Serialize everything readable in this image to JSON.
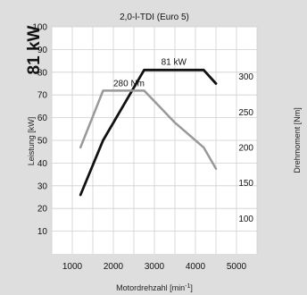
{
  "chart_data": {
    "type": "line",
    "title": "2,0-l-TDI (Euro 5)",
    "headline": "81 kW",
    "xlabel": "Motordrehzahl [min-1]",
    "xlabel_unit_base": "Motordrehzahl [min",
    "xlabel_unit_exp": "-1",
    "xlabel_unit_close": "]",
    "ylabel_left": "Leistung [kW]",
    "ylabel_right": "Drehmoment [Nm]",
    "xlim": [
      500,
      5500
    ],
    "x_ticks": [
      1000,
      2000,
      3000,
      4000,
      5000
    ],
    "ylim_left": [
      0,
      100
    ],
    "y_ticks_left": [
      10,
      20,
      30,
      40,
      50,
      60,
      70,
      80,
      90,
      100
    ],
    "ylim_right": [
      50,
      370
    ],
    "y_ticks_right": [
      100,
      150,
      200,
      250,
      300
    ],
    "grid": true,
    "series": [
      {
        "name": "Leistung",
        "axis": "left",
        "color": "#111111",
        "x": [
          1200,
          1750,
          2750,
          4200,
          4500
        ],
        "y": [
          26,
          50,
          81,
          81,
          75
        ],
        "peak_label": "81 kW"
      },
      {
        "name": "Drehmoment",
        "axis": "right",
        "color": "#999999",
        "x": [
          1200,
          1750,
          2750,
          3000,
          3500,
          4200,
          4500
        ],
        "y": [
          200,
          280,
          280,
          265,
          235,
          200,
          170
        ],
        "peak_label": "280 Nm"
      }
    ]
  }
}
